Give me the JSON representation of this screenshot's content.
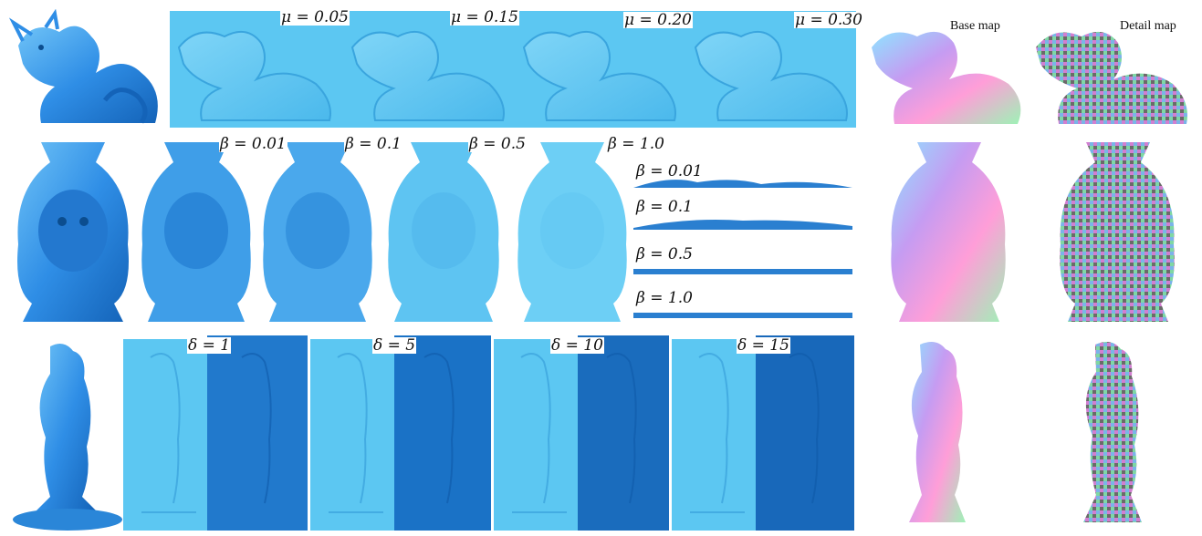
{
  "labels": {
    "row1": [
      "μ = 0.05",
      "μ = 0.15",
      "μ = 0.20",
      "μ = 0.30"
    ],
    "maps": {
      "base": "Base map",
      "detail": "Detail map"
    },
    "row2": [
      "β = 0.01",
      "β = 0.1",
      "β = 0.5",
      "β = 1.0"
    ],
    "row2_profiles": [
      "β = 0.01",
      "β = 0.1",
      "β = 0.5",
      "β = 1.0"
    ],
    "row3": [
      "δ = 1",
      "δ = 5",
      "δ = 10",
      "δ = 15"
    ]
  },
  "colors": {
    "model_blue": "#2f8ee6",
    "relief_light": "#5cc7f2",
    "relief_dark": "#1a72c6",
    "relief_mid": "#6ad0f5"
  },
  "figures": {
    "row1_models": [
      "dragon-model",
      "dragon-relief",
      "dragon-relief",
      "dragon-relief",
      "dragon-relief",
      "dragon-base-map",
      "dragon-detail-map"
    ],
    "row2_models": [
      "lion-vase-model",
      "lion-relief",
      "lion-relief",
      "lion-relief",
      "lion-relief",
      "lion-base-map",
      "lion-detail-map"
    ],
    "row3_models": [
      "couple-model",
      "couple-relief-pair",
      "couple-relief-pair",
      "couple-relief-pair",
      "couple-relief-pair",
      "couple-base-map",
      "couple-detail-map"
    ]
  }
}
